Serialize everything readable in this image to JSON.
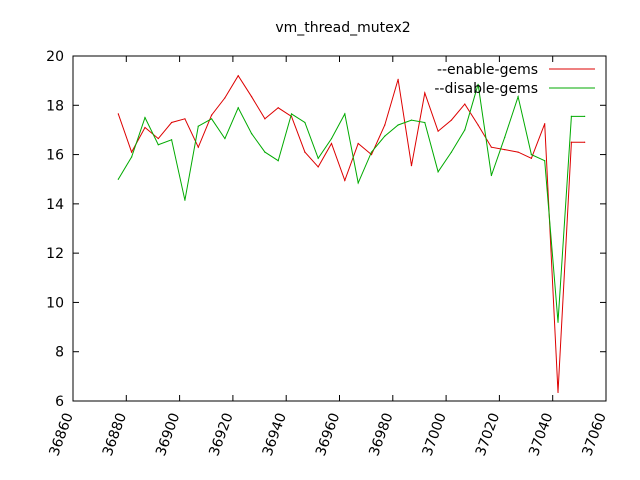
{
  "chart_data": {
    "type": "line",
    "title": "vm_thread_mutex2",
    "xlabel": "",
    "ylabel": "",
    "xlim": [
      36860,
      37060
    ],
    "ylim": [
      6,
      20
    ],
    "xticks": [
      36860,
      36880,
      36900,
      36920,
      36940,
      36960,
      36980,
      37000,
      37020,
      37040,
      37060
    ],
    "yticks": [
      6,
      8,
      10,
      12,
      14,
      16,
      18,
      20
    ],
    "grid": false,
    "legend_position": "top-right",
    "series": [
      {
        "name": "--enable-gems",
        "color": "#dd0000",
        "x": [
          36877,
          36882,
          36887,
          36892,
          36897,
          36902,
          36907,
          36912,
          36917,
          36922,
          36927,
          36932,
          36937,
          36942,
          36947,
          36952,
          36957,
          36962,
          36967,
          36972,
          36977,
          36982,
          36987,
          36992,
          36997,
          37002,
          37007,
          37012,
          37017,
          37022,
          37027,
          37032,
          37037,
          37042,
          37047,
          37052
        ],
        "y": [
          17.65,
          16.1,
          17.1,
          16.65,
          17.3,
          17.45,
          16.3,
          17.6,
          18.3,
          19.2,
          18.35,
          17.45,
          17.9,
          17.55,
          16.1,
          15.5,
          16.45,
          14.95,
          16.45,
          16.0,
          17.2,
          19.05,
          15.55,
          18.5,
          16.95,
          17.4,
          18.05,
          17.2,
          16.3,
          16.2,
          16.1,
          15.85,
          17.25,
          6.35,
          16.5,
          16.5
        ]
      },
      {
        "name": "--disable-gems",
        "color": "#00aa00",
        "x": [
          36877,
          36882,
          36887,
          36892,
          36897,
          36902,
          36907,
          36912,
          36917,
          36922,
          36927,
          36932,
          36937,
          36942,
          36947,
          36952,
          36957,
          36962,
          36967,
          36972,
          36977,
          36982,
          36987,
          36992,
          36997,
          37002,
          37007,
          37012,
          37017,
          37022,
          37027,
          37032,
          37037,
          37042,
          37047,
          37052
        ],
        "y": [
          15.0,
          15.9,
          17.5,
          16.4,
          16.6,
          14.15,
          17.15,
          17.45,
          16.65,
          17.9,
          16.85,
          16.1,
          15.75,
          17.65,
          17.3,
          15.85,
          16.65,
          17.65,
          14.85,
          16.1,
          16.75,
          17.2,
          17.4,
          17.3,
          15.3,
          16.1,
          17.0,
          18.85,
          15.15,
          16.7,
          18.35,
          16.0,
          15.75,
          9.2,
          17.55,
          17.55
        ]
      }
    ]
  }
}
